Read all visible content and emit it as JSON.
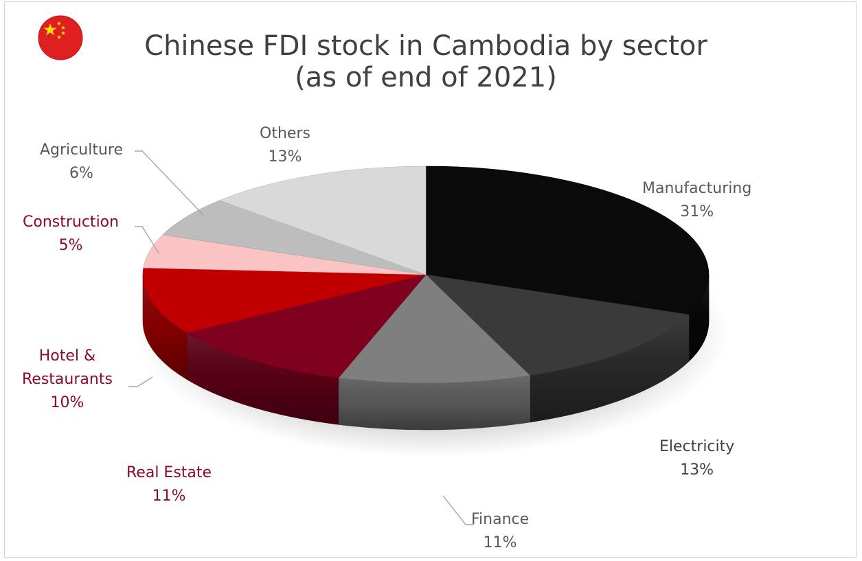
{
  "chart_data": {
    "type": "pie",
    "title_line1": "Chinese FDI stock in Cambodia by sector",
    "title_line2": "(as of end of 2021)",
    "slices": [
      {
        "label": "Manufacturing",
        "value": 31,
        "value_label": "31%",
        "color": "#0a0a0a",
        "label_color": "#595959"
      },
      {
        "label": "Electricity",
        "value": 13,
        "value_label": "13%",
        "color": "#3a3a3a",
        "label_color": "#404040"
      },
      {
        "label": "Finance",
        "value": 11,
        "value_label": "11%",
        "color": "#7f7f7f",
        "label_color": "#595959"
      },
      {
        "label": "Real Estate",
        "value": 11,
        "value_label": "11%",
        "color": "#800020",
        "label_color": "#8b0a25"
      },
      {
        "label": "Hotel & Restaurants",
        "label_line1": "Hotel &",
        "label_line2": "Restaurants",
        "value": 10,
        "value_label": "10%",
        "color": "#c00000",
        "label_color": "#8b0a25"
      },
      {
        "label": "Construction",
        "value": 5,
        "value_label": "5%",
        "color": "#fbc4c4",
        "label_color": "#8b0a25"
      },
      {
        "label": "Agriculture",
        "value": 6,
        "value_label": "6%",
        "color": "#bdbdbd",
        "label_color": "#595959"
      },
      {
        "label": "Others",
        "value": 13,
        "value_label": "13%",
        "color": "#d9d9d9",
        "label_color": "#595959"
      }
    ],
    "start": "12 o'clock",
    "direction": "clockwise",
    "style": "3D pie",
    "legend": "none"
  }
}
